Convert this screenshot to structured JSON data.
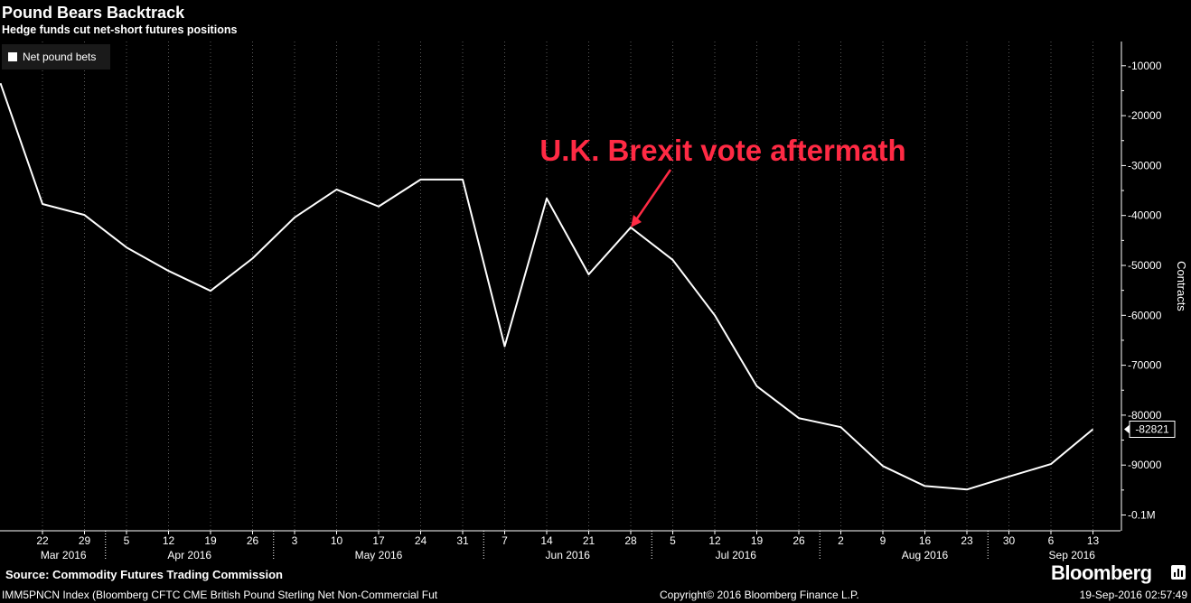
{
  "header": {
    "title": "Pound Bears Backtrack",
    "subtitle": "Hedge funds cut net-short futures positions"
  },
  "footer": {
    "source": "Source: Commodity Futures Trading Commission",
    "index": "IMM5PNCN Index (Bloomberg CFTC CME British Pound Sterling Net Non-Commercial Fut",
    "copyright": "Copyright© 2016 Bloomberg Finance L.P.",
    "date": "19-Sep-2016 02:57:49",
    "brand": "Bloomberg"
  },
  "colors": {
    "background": "#000000",
    "line": "#ffffff",
    "annotation": "#ff2a44",
    "axis_text": "#ffffff"
  },
  "chart_data": {
    "type": "line",
    "title": "Pound Bears Backtrack",
    "subtitle": "Hedge funds cut net-short futures positions",
    "ylabel": "Contracts",
    "ylim": [
      -104000,
      -3000
    ],
    "yticks": [
      -10000,
      -20000,
      -30000,
      -40000,
      -50000,
      -60000,
      -70000,
      -80000,
      -90000,
      -100000
    ],
    "ytick_labels": [
      "-10000",
      "-20000",
      "-30000",
      "-40000",
      "-50000",
      "-60000",
      "-70000",
      "-80000",
      "-90000",
      "-0.1M"
    ],
    "legend": {
      "position": "top-left",
      "entries": [
        "Net pound bets"
      ]
    },
    "grid": "vertical-dotted",
    "x_tick_labels": [
      "22",
      "29",
      "5",
      "12",
      "19",
      "26",
      "3",
      "10",
      "17",
      "24",
      "31",
      "7",
      "14",
      "21",
      "28",
      "5",
      "12",
      "19",
      "26",
      "2",
      "9",
      "16",
      "23",
      "30",
      "6",
      "13"
    ],
    "month_labels": [
      "Mar 2016",
      "Apr 2016",
      "May 2016",
      "Jun 2016",
      "Jul 2016",
      "Aug 2016",
      "Sep 2016"
    ],
    "month_label_index": [
      0.5,
      3.5,
      8,
      12.5,
      16.5,
      21,
      24.5
    ],
    "month_separator_index": [
      1.5,
      5.5,
      10.5,
      14.5,
      18.5,
      22.5
    ],
    "series": [
      {
        "name": "Net pound bets",
        "x_index": [
          -1,
          0,
          1,
          2,
          3,
          4,
          5,
          6,
          7,
          8,
          9,
          10,
          11,
          12,
          13,
          14,
          15,
          16,
          17,
          18,
          19,
          20,
          21,
          22,
          23,
          24,
          25
        ],
        "values": [
          -13500,
          -37700,
          -39900,
          -46400,
          -51100,
          -55100,
          -48600,
          -40400,
          -34800,
          -38200,
          -32800,
          -32800,
          -66200,
          -36600,
          -51800,
          -42400,
          -48900,
          -60000,
          -74200,
          -80600,
          -82400,
          -90200,
          -94200,
          -94900,
          -92300,
          -89800,
          -82821
        ]
      }
    ],
    "last_value_label": "-82821",
    "annotations": [
      {
        "text": "U.K. Brexit vote aftermath",
        "target_index": 14,
        "target_value": -42400
      }
    ]
  }
}
